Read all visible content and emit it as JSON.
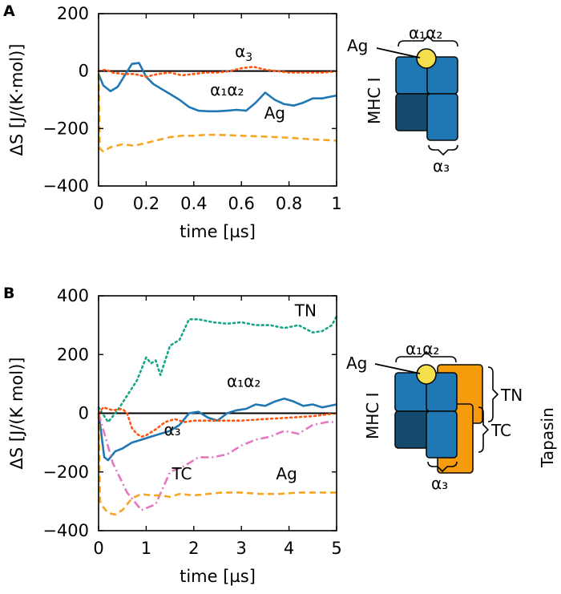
{
  "panels": [
    {
      "letter": "A",
      "chart_data": {
        "type": "line",
        "xlabel": "time [µs]",
        "ylabel": "ΔS [J/(K·mol)]",
        "xlim": [
          0,
          1
        ],
        "ylim": [
          -400,
          200
        ],
        "xticks": [
          "0",
          "0.2",
          "0.4",
          "0.6",
          "0.8",
          "1"
        ],
        "xtick_values": [
          0,
          0.2,
          0.4,
          0.6,
          0.8,
          1
        ],
        "yticks": [
          "−400",
          "−200",
          "0",
          "200"
        ],
        "ytick_values": [
          -400,
          -200,
          0,
          200
        ],
        "grid": false,
        "series": [
          {
            "key": "a1a2",
            "color": "#1f77b4",
            "style": "solid",
            "x": [
              0,
              0.02,
              0.05,
              0.08,
              0.11,
              0.14,
              0.17,
              0.2,
              0.23,
              0.26,
              0.3,
              0.34,
              0.38,
              0.42,
              0.46,
              0.5,
              0.54,
              0.58,
              0.62,
              0.66,
              0.7,
              0.74,
              0.78,
              0.82,
              0.86,
              0.9,
              0.94,
              0.97,
              1.0
            ],
            "y": [
              -10,
              -50,
              -70,
              -55,
              -15,
              25,
              28,
              -20,
              -45,
              -60,
              -80,
              -100,
              -125,
              -138,
              -140,
              -140,
              -138,
              -135,
              -138,
              -110,
              -75,
              -100,
              -115,
              -120,
              -110,
              -95,
              -95,
              -90,
              -85
            ]
          },
          {
            "key": "a3",
            "color": "#ff5511",
            "style": "dotted",
            "x": [
              0,
              0.03,
              0.06,
              0.1,
              0.15,
              0.2,
              0.25,
              0.3,
              0.35,
              0.4,
              0.45,
              0.5,
              0.55,
              0.6,
              0.65,
              0.7,
              0.75,
              0.8,
              0.85,
              0.9,
              0.95,
              1.0
            ],
            "y": [
              0,
              5,
              -5,
              -10,
              -10,
              -20,
              -10,
              -5,
              -15,
              -10,
              -5,
              -5,
              0,
              10,
              15,
              5,
              0,
              -5,
              -5,
              -5,
              -5,
              0
            ]
          },
          {
            "key": "ag",
            "color": "#f5a623",
            "style": "dashed",
            "x": [
              0,
              0.005,
              0.02,
              0.05,
              0.1,
              0.15,
              0.2,
              0.25,
              0.3,
              0.35,
              0.4,
              0.45,
              0.5,
              0.6,
              0.7,
              0.8,
              0.9,
              1.0
            ],
            "y": [
              -10,
              -270,
              -280,
              -265,
              -255,
              -260,
              -250,
              -240,
              -230,
              -225,
              -225,
              -222,
              -222,
              -225,
              -228,
              -232,
              -238,
              -242
            ]
          }
        ],
        "labels": [
          {
            "key": "a3",
            "text": "α",
            "sub": "3",
            "x": 0.61,
            "y": 50
          },
          {
            "key": "a1a2",
            "text": "α₁α₂",
            "x": 0.54,
            "y": -85
          },
          {
            "key": "ag",
            "text": "Ag",
            "x": 0.74,
            "y": -165
          }
        ]
      },
      "diagram": {
        "top_label": "α₁α₂",
        "ag_label": "Ag",
        "mhc_label": "MHC I",
        "bottom_label": "α₃"
      }
    },
    {
      "letter": "B",
      "chart_data": {
        "type": "line",
        "xlabel": "time [µs]",
        "ylabel": "ΔS [J/(K mol)]",
        "xlim": [
          0,
          5
        ],
        "ylim": [
          -400,
          400
        ],
        "xticks": [
          "0",
          "1",
          "2",
          "3",
          "4",
          "5"
        ],
        "xtick_values": [
          0,
          1,
          2,
          3,
          4,
          5
        ],
        "yticks": [
          "−400",
          "−200",
          "0",
          "200",
          "400"
        ],
        "ytick_values": [
          -400,
          -200,
          0,
          200,
          400
        ],
        "grid": false,
        "series": [
          {
            "key": "tn",
            "color": "#17a589",
            "style": "dotted",
            "x": [
              0,
              0.2,
              0.4,
              0.6,
              0.8,
              0.9,
              1.0,
              1.1,
              1.2,
              1.3,
              1.5,
              1.7,
              1.9,
              2.1,
              2.4,
              2.7,
              3.0,
              3.3,
              3.6,
              3.9,
              4.2,
              4.5,
              4.7,
              4.9,
              5.0
            ],
            "y": [
              20,
              -30,
              10,
              60,
              110,
              150,
              190,
              170,
              180,
              130,
              230,
              250,
              320,
              320,
              310,
              305,
              310,
              300,
              300,
              290,
              300,
              275,
              280,
              300,
              330
            ]
          },
          {
            "key": "a1a2",
            "color": "#1f77b4",
            "style": "solid",
            "x": [
              0,
              0.05,
              0.12,
              0.2,
              0.35,
              0.5,
              0.7,
              0.9,
              1.1,
              1.3,
              1.5,
              1.7,
              1.9,
              2.1,
              2.3,
              2.5,
              2.7,
              2.9,
              3.1,
              3.3,
              3.5,
              3.7,
              3.9,
              4.1,
              4.3,
              4.5,
              4.7,
              5.0
            ],
            "y": [
              0,
              -60,
              -150,
              -160,
              -130,
              -120,
              -100,
              -90,
              -80,
              -70,
              -60,
              -40,
              0,
              5,
              -15,
              -25,
              0,
              10,
              15,
              30,
              25,
              40,
              50,
              40,
              25,
              30,
              20,
              30
            ]
          },
          {
            "key": "a3",
            "color": "#ff5511",
            "style": "dotted",
            "x": [
              0,
              0.1,
              0.3,
              0.5,
              0.6,
              0.7,
              0.8,
              0.9,
              1.0,
              1.2,
              1.4,
              1.6,
              1.8,
              2.0,
              2.3,
              2.6,
              3.0,
              3.5,
              4.0,
              4.5,
              5.0
            ],
            "y": [
              0,
              20,
              10,
              15,
              0,
              -50,
              -70,
              -80,
              -75,
              -55,
              -30,
              -20,
              -30,
              -25,
              -25,
              -25,
              -25,
              -20,
              -15,
              -10,
              0
            ]
          },
          {
            "key": "tc",
            "color": "#e377c2",
            "style": "dashdot",
            "x": [
              0,
              0.3,
              0.6,
              0.9,
              1.2,
              1.5,
              1.8,
              2.1,
              2.4,
              2.7,
              3.0,
              3.3,
              3.6,
              3.9,
              4.2,
              4.5,
              4.8,
              5.0
            ],
            "y": [
              0,
              -170,
              -270,
              -330,
              -310,
              -200,
              -180,
              -150,
              -150,
              -140,
              -110,
              -90,
              -80,
              -60,
              -70,
              -40,
              -30,
              -30
            ]
          },
          {
            "key": "ag",
            "color": "#f5a623",
            "style": "dashed",
            "x": [
              0,
              0.03,
              0.1,
              0.2,
              0.35,
              0.5,
              0.7,
              0.9,
              1.1,
              1.3,
              1.5,
              1.7,
              2.0,
              2.3,
              2.6,
              3.0,
              3.4,
              3.8,
              4.2,
              4.6,
              5.0
            ],
            "y": [
              0,
              -300,
              -320,
              -340,
              -345,
              -330,
              -290,
              -275,
              -280,
              -280,
              -285,
              -275,
              -280,
              -275,
              -270,
              -270,
              -275,
              -275,
              -270,
              -270,
              -270
            ]
          }
        ],
        "labels": [
          {
            "key": "tn",
            "text": "TN",
            "x": 4.35,
            "y": 330
          },
          {
            "key": "a1a2",
            "text": "α₁α₂",
            "x": 3.05,
            "y": 90
          },
          {
            "key": "a3",
            "text": "α₃",
            "x": 1.55,
            "y": -75
          },
          {
            "key": "tc",
            "text": "TC",
            "x": 1.75,
            "y": -225
          },
          {
            "key": "ag",
            "text": "Ag",
            "x": 3.95,
            "y": -225
          }
        ]
      },
      "diagram": {
        "top_label": "α₁α₂",
        "ag_label": "Ag",
        "mhc_label": "MHC I",
        "tn_label": "TN",
        "tc_label": "TC",
        "tapasin_label": "Tapasin",
        "bottom_label": "α₃"
      }
    }
  ]
}
